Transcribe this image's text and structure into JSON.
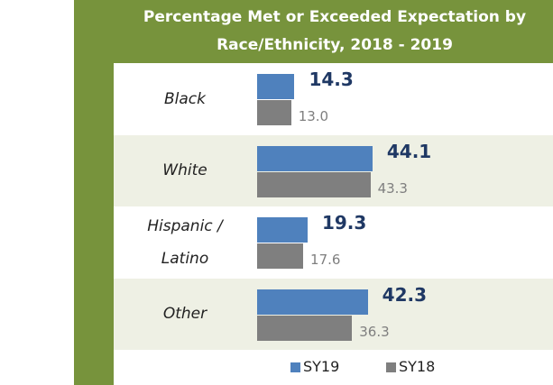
{
  "chart_data": {
    "type": "bar",
    "orientation": "horizontal",
    "title": "Percentage Met or Exceeded Expectation by Race/Ethnicity, 2018 - 2019",
    "categories": [
      "Black",
      "White",
      "Hispanic / Latino",
      "Other"
    ],
    "series": [
      {
        "name": "SY19",
        "color": "#4f81bd",
        "values": [
          14.3,
          44.1,
          19.3,
          42.3
        ],
        "value_labels": [
          "14.3",
          "44.1",
          "19.3",
          "42.3"
        ]
      },
      {
        "name": "SY18",
        "color": "#7f7f7f",
        "values": [
          13.0,
          43.3,
          17.6,
          36.3
        ],
        "value_labels": [
          "13.0",
          "43.3",
          "17.6",
          "36.3"
        ]
      }
    ]
  }
}
